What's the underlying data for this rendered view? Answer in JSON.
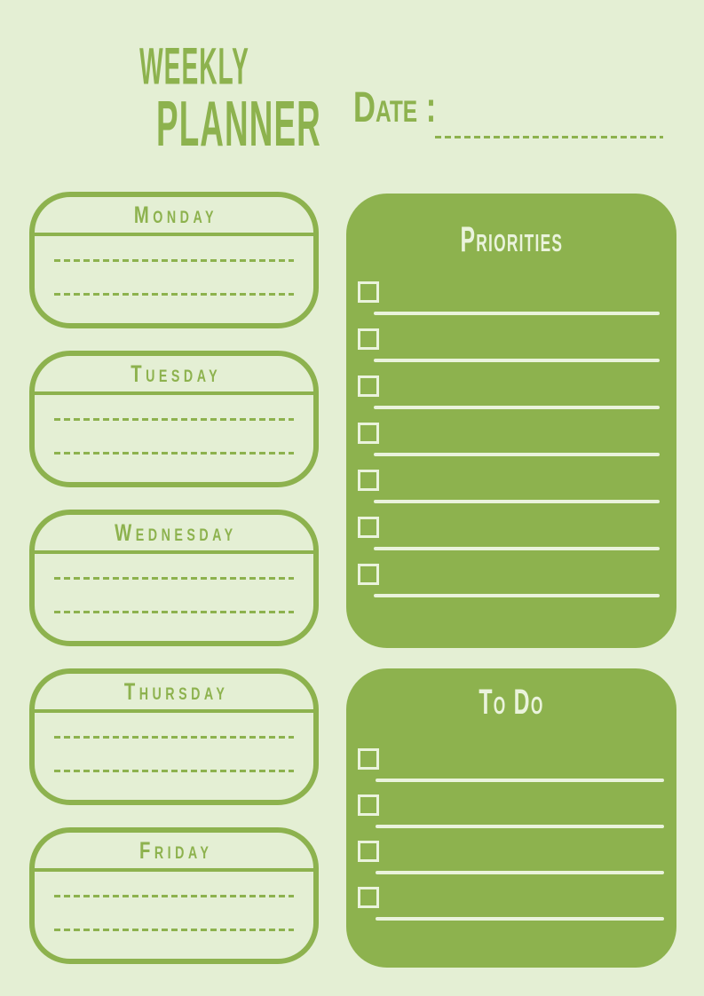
{
  "header": {
    "title_line1": "WEEKLY",
    "title_line2": "PLANNER",
    "date_label": "Date :"
  },
  "days": [
    {
      "label": "Monday"
    },
    {
      "label": "Tuesday"
    },
    {
      "label": "Wednesday"
    },
    {
      "label": "Thursday"
    },
    {
      "label": "Friday"
    }
  ],
  "priorities": {
    "title": "Priorities",
    "rows": 7
  },
  "todo": {
    "title": "To Do",
    "rows": 4
  },
  "colors": {
    "page_background": "#e4efd4",
    "accent_green": "#8db24e",
    "panel_light": "#eaf3dc"
  }
}
